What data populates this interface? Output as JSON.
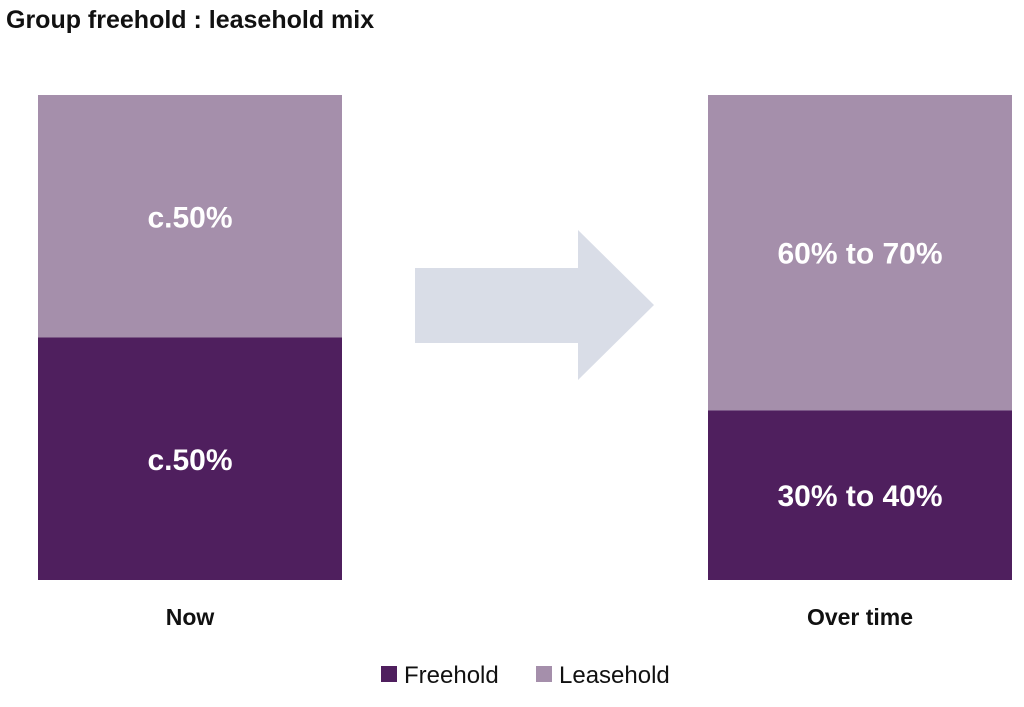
{
  "chart_data": {
    "type": "bar",
    "title": "Group freehold : leasehold mix",
    "categories": [
      "Now",
      "Over time"
    ],
    "series": [
      {
        "name": "Freehold",
        "values": [
          50,
          35
        ],
        "labels": [
          "c.50%",
          "30% to 40%"
        ],
        "color": "#4f1f5e"
      },
      {
        "name": "Leasehold",
        "values": [
          50,
          65
        ],
        "labels": [
          "c.50%",
          "60% to 70%"
        ],
        "color": "#a58fab"
      }
    ],
    "xlabel": "",
    "ylabel": "",
    "ylim": [
      0,
      100
    ],
    "grid": false,
    "legend_position": "bottom",
    "stacked": true,
    "arrow_color": "#d9dde7"
  }
}
